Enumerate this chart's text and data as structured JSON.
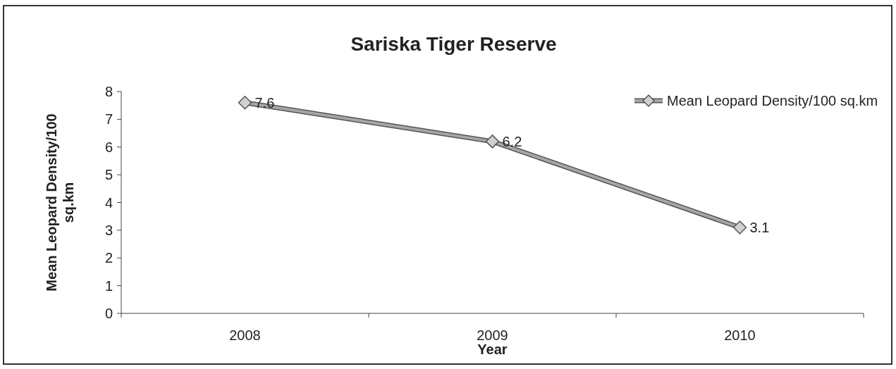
{
  "chart_data": {
    "type": "line",
    "title": "Sariska Tiger Reserve",
    "xlabel": "Year",
    "ylabel": "Mean Leopard Density/100 sq.km",
    "categories": [
      "2008",
      "2009",
      "2010"
    ],
    "series": [
      {
        "name": "Mean Leopard Density/100 sq.km",
        "color": "#a6a6a6",
        "values": [
          7.6,
          6.2,
          3.1
        ]
      }
    ],
    "ylim": [
      0,
      8
    ],
    "yticks": [
      0,
      1,
      2,
      3,
      4,
      5,
      6,
      7,
      8
    ],
    "marker": "diamond",
    "data_labels": true,
    "legend": "top right",
    "grid": false
  }
}
